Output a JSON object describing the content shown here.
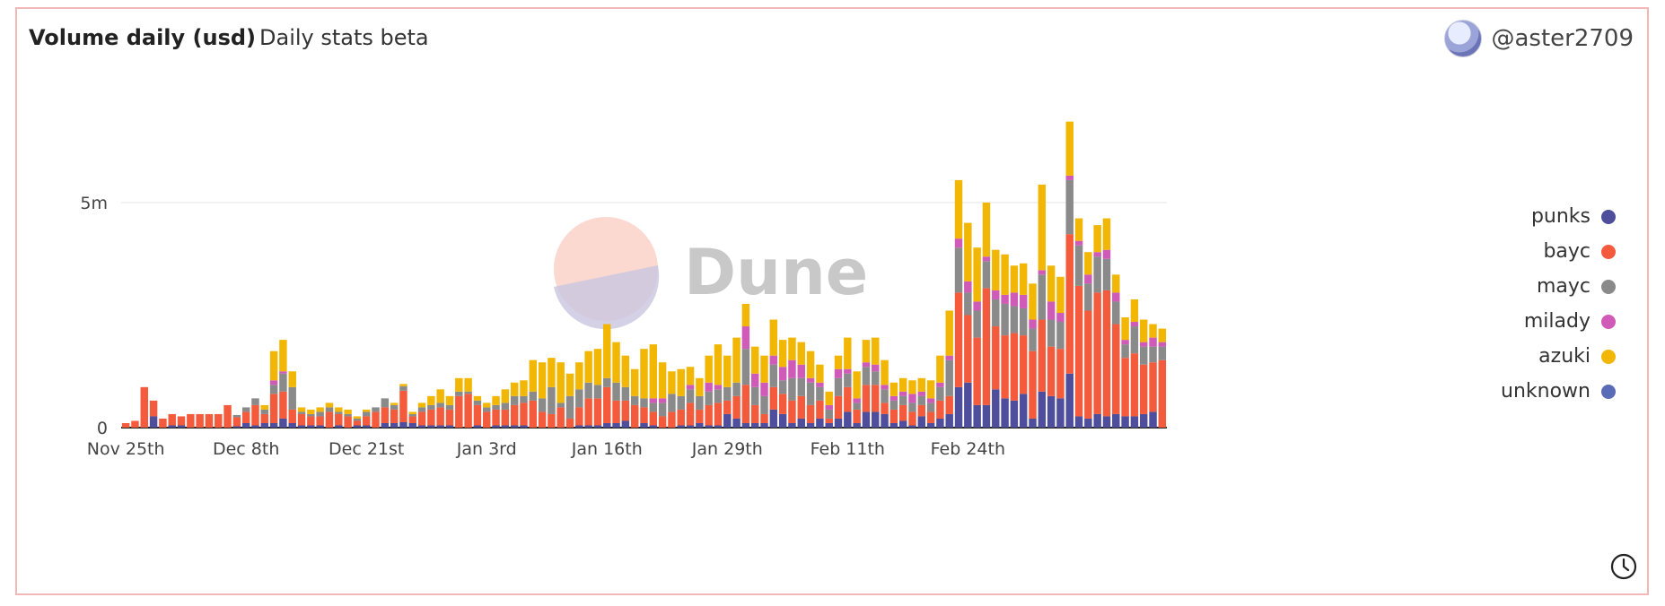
{
  "header": {
    "title": "Volume daily (usd)",
    "subtitle": "Daily stats beta",
    "author": "@aster2709",
    "avatar_icon": "avatar-icon",
    "clock_icon": "clock-icon"
  },
  "watermark": "Dune",
  "colors": {
    "punks": "#4e4e9c",
    "bayc": "#f45b3c",
    "mayc": "#8a8a8a",
    "milady": "#cf5ab7",
    "azuki": "#f2b705",
    "unknown": "#5a6bb8"
  },
  "chart_data": {
    "type": "bar",
    "stacked": true,
    "title": "Volume daily (usd)",
    "xlabel": "",
    "ylabel": "",
    "ylim": [
      0,
      7500000
    ],
    "y_ticks": [
      {
        "value": 0,
        "label": "0"
      },
      {
        "value": 5000000,
        "label": "5m"
      }
    ],
    "x_ticks": [
      {
        "day_index": 0,
        "label": "Nov 25th"
      },
      {
        "day_index": 13,
        "label": "Dec 8th"
      },
      {
        "day_index": 26,
        "label": "Dec 21st"
      },
      {
        "day_index": 39,
        "label": "Jan 3rd"
      },
      {
        "day_index": 52,
        "label": "Jan 16th"
      },
      {
        "day_index": 65,
        "label": "Jan 29th"
      },
      {
        "day_index": 78,
        "label": "Feb 11th"
      },
      {
        "day_index": 91,
        "label": "Feb 24th"
      }
    ],
    "legend_position": "right",
    "grid": true,
    "categories_start": "Nov 25th",
    "series": [
      {
        "name": "punks",
        "values": [
          0,
          0,
          0,
          0.25,
          0,
          0.05,
          0.05,
          0,
          0,
          0,
          0,
          0,
          0.03,
          0.1,
          0.05,
          0.1,
          0.1,
          0.2,
          0.1,
          0.05,
          0.05,
          0.05,
          0,
          0.05,
          0,
          0.05,
          0.05,
          0,
          0.1,
          0.1,
          0.12,
          0.1,
          0.05,
          0.05,
          0.05,
          0.05,
          0,
          0,
          0.05,
          0,
          0.05,
          0.05,
          0.05,
          0.05,
          0,
          0,
          0,
          0,
          0,
          0.05,
          0.05,
          0.05,
          0.1,
          0.1,
          0.15,
          0,
          0.1,
          0.05,
          0,
          0,
          0.05,
          0.05,
          0.1,
          0.05,
          0.05,
          0.3,
          0.2,
          0.1,
          0.1,
          0.1,
          0.4,
          0.3,
          0.1,
          0.2,
          0.1,
          0.2,
          0.1,
          0.2,
          0.35,
          0.1,
          0.35,
          0.35,
          0.3,
          0.1,
          0.15,
          0.05,
          0.25,
          0.1,
          0.2,
          0.3,
          0.9,
          1.0,
          0.5,
          0.5,
          0.85,
          0.65,
          0.6,
          0.75,
          0.2,
          0.8,
          0.7,
          0.65,
          1.2,
          0.25,
          0.2,
          0.3,
          0.25,
          0.3,
          0.25,
          0.25,
          0.3,
          0.35,
          0
        ],
        "series_color_key": "punks"
      },
      {
        "name": "bayc",
        "values": [
          0.1,
          0.15,
          0.9,
          0.35,
          0.2,
          0.25,
          0.2,
          0.3,
          0.3,
          0.3,
          0.3,
          0.5,
          0.2,
          0.25,
          0.45,
          0.2,
          0.65,
          0.6,
          0.3,
          0.25,
          0.2,
          0.2,
          0.35,
          0.25,
          0.25,
          0.1,
          0.2,
          0.35,
          0.35,
          0.3,
          0.7,
          0.15,
          0.3,
          0.35,
          0.4,
          0.35,
          0.7,
          0.75,
          0.45,
          0.35,
          0.35,
          0.35,
          0.45,
          0.5,
          0.6,
          0.35,
          0.3,
          0.45,
          0.2,
          0.4,
          0.6,
          0.6,
          0.8,
          0.5,
          0.45,
          0.5,
          0.35,
          0.3,
          0.25,
          0.35,
          0.35,
          0.5,
          0.3,
          0.45,
          0.5,
          0.3,
          0.5,
          0.85,
          0.4,
          0.2,
          0.5,
          0.45,
          0.5,
          0.5,
          0.4,
          0.4,
          0.1,
          0.5,
          0.55,
          0.3,
          0.6,
          0.6,
          0.25,
          0.3,
          0.35,
          0.3,
          0.25,
          0.25,
          0.4,
          0.4,
          2.1,
          1.5,
          1.5,
          2.6,
          1.4,
          1.4,
          1.5,
          1.3,
          1.5,
          1.6,
          1.1,
          1.1,
          3.1,
          2.9,
          2.4,
          2.7,
          2.8,
          2.0,
          1.3,
          1.4,
          1.1,
          1.1,
          1.5,
          0
        ],
        "series_color_key": "bayc"
      },
      {
        "name": "mayc",
        "values": [
          0,
          0,
          0,
          0,
          0,
          0,
          0,
          0,
          0,
          0,
          0,
          0,
          0.05,
          0.1,
          0.15,
          0.1,
          0.2,
          0.4,
          0.5,
          0.05,
          0.05,
          0.1,
          0.1,
          0.05,
          0.05,
          0.05,
          0.1,
          0.1,
          0.2,
          0.1,
          0.1,
          0.05,
          0.1,
          0.1,
          0.1,
          0.1,
          0.1,
          0.05,
          0.1,
          0.1,
          0.1,
          0.15,
          0.2,
          0.15,
          0.2,
          0.3,
          0.6,
          0.1,
          0.5,
          0.4,
          0.35,
          0.3,
          0.2,
          0.4,
          0.3,
          0.2,
          0.2,
          0.2,
          0.3,
          0.4,
          0.3,
          0.3,
          0.3,
          0.3,
          0.3,
          0.3,
          0.3,
          0.8,
          0.4,
          0.4,
          0.5,
          0.3,
          0.5,
          0.4,
          0.5,
          0.3,
          0.2,
          0.4,
          0.3,
          0.15,
          0.4,
          0.3,
          0.3,
          0.2,
          0.2,
          0.2,
          0.2,
          0.2,
          0.3,
          0.8,
          1.0,
          0.5,
          0.6,
          0.6,
          0.6,
          0.7,
          0.6,
          0.6,
          0.5,
          1.0,
          0.6,
          0.6,
          1.2,
          0.9,
          0.6,
          0.8,
          0.7,
          0.5,
          0.3,
          0.6,
          0.4,
          0.35,
          0.3,
          0
        ],
        "series_color_key": "mayc"
      },
      {
        "name": "milady",
        "values": [
          0,
          0,
          0,
          0,
          0,
          0,
          0,
          0,
          0,
          0,
          0,
          0,
          0,
          0,
          0,
          0,
          0.1,
          0.05,
          0,
          0,
          0,
          0,
          0,
          0,
          0,
          0,
          0,
          0,
          0,
          0,
          0,
          0,
          0,
          0,
          0,
          0,
          0,
          0,
          0,
          0,
          0,
          0,
          0,
          0,
          0,
          0,
          0,
          0,
          0,
          0,
          0,
          0,
          0,
          0,
          0,
          0,
          0,
          0.1,
          0.1,
          0,
          0,
          0.1,
          0,
          0.2,
          0.1,
          0,
          0,
          0.5,
          0.3,
          0.3,
          0.2,
          0.3,
          0.4,
          0.3,
          0.1,
          0.1,
          0.1,
          0.2,
          0.1,
          0.1,
          0.1,
          0.15,
          0.1,
          0.1,
          0.1,
          0.2,
          0.1,
          0.1,
          0.1,
          0.1,
          0.2,
          0.25,
          0.2,
          0.1,
          0.2,
          0.2,
          0.3,
          0.3,
          0.2,
          0.1,
          0.4,
          0.2,
          0.1,
          0.1,
          0.2,
          0.1,
          0.2,
          0.2,
          0.1,
          0.1,
          0.1,
          0.2,
          0.1,
          0.1
        ],
        "series_color_key": "milady"
      },
      {
        "name": "azuki",
        "values": [
          0,
          0,
          0,
          0,
          0,
          0,
          0,
          0,
          0,
          0,
          0,
          0,
          0,
          0,
          0,
          0.1,
          0.65,
          0.7,
          0.35,
          0.1,
          0.1,
          0.1,
          0.1,
          0.1,
          0.1,
          0.05,
          0.05,
          0,
          0,
          0.05,
          0.05,
          0.05,
          0.1,
          0.2,
          0.3,
          0.2,
          0.3,
          0.3,
          0.1,
          0.1,
          0.2,
          0.3,
          0.3,
          0.35,
          0.7,
          0.8,
          0.65,
          0.9,
          0.5,
          0.6,
          0.7,
          0.8,
          1.2,
          0.9,
          0.7,
          0.6,
          1.1,
          1.2,
          0.8,
          0.5,
          0.6,
          0.4,
          0.4,
          0.6,
          0.9,
          0.7,
          1.0,
          0.5,
          0.6,
          0.6,
          0.8,
          0.6,
          0.5,
          0.5,
          0.6,
          0.4,
          0.3,
          0.3,
          0.7,
          0.6,
          0.5,
          0.6,
          0.55,
          0.3,
          0.3,
          0.3,
          0.3,
          0.4,
          0.6,
          1.0,
          1.3,
          1.3,
          1.2,
          1.2,
          0.9,
          0.9,
          0.6,
          0.7,
          0.8,
          1.9,
          0.8,
          0.8,
          1.2,
          0.5,
          0.5,
          0.6,
          0.7,
          0.4,
          0.5,
          0.5,
          0.5,
          0.3,
          0.3,
          0.2
        ]
      }
    ]
  },
  "legend": [
    {
      "label": "punks",
      "color": "#4e4e9c"
    },
    {
      "label": "bayc",
      "color": "#f45b3c"
    },
    {
      "label": "mayc",
      "color": "#8a8a8a"
    },
    {
      "label": "milady",
      "color": "#cf5ab7"
    },
    {
      "label": "azuki",
      "color": "#f2b705"
    },
    {
      "label": "unknown",
      "color": "#5a6bb8"
    }
  ]
}
